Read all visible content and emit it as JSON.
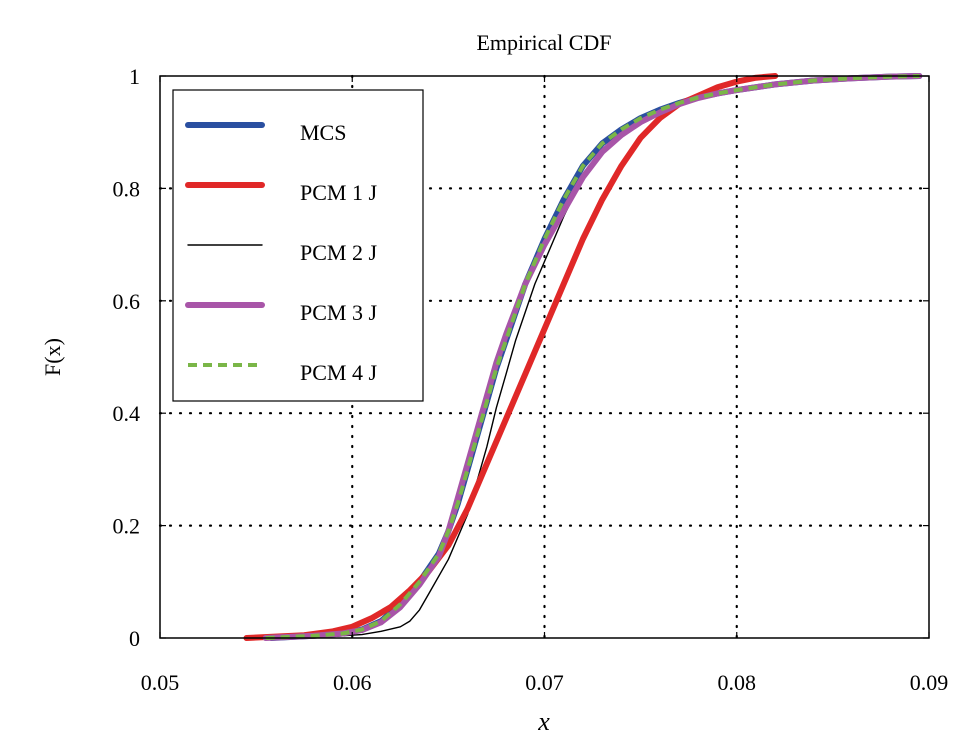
{
  "chart_data": {
    "type": "line",
    "title": "Empirical CDF",
    "xlabel": "x",
    "ylabel": "F(x)",
    "xlim": [
      0.05,
      0.09
    ],
    "ylim": [
      0,
      1
    ],
    "x_ticks": [
      0.05,
      0.06,
      0.07,
      0.08,
      0.09
    ],
    "x_tick_labels": [
      "0.05",
      "0.06",
      "0.07",
      "0.08",
      "0.09"
    ],
    "y_ticks": [
      0,
      0.2,
      0.4,
      0.6,
      0.8,
      1
    ],
    "y_tick_labels": [
      "0",
      "0.2",
      "0.4",
      "0.6",
      "0.8",
      "1"
    ],
    "grid": "dotted",
    "legend_position": "top-left",
    "series": [
      {
        "name": "MCS",
        "color": "#2a4fa0",
        "style": "solid-thick",
        "x": [
          0.0558,
          0.058,
          0.0595,
          0.0605,
          0.0615,
          0.0625,
          0.0635,
          0.0645,
          0.065,
          0.0655,
          0.066,
          0.0665,
          0.067,
          0.0675,
          0.068,
          0.0685,
          0.069,
          0.0695,
          0.07,
          0.0705,
          0.071,
          0.0715,
          0.072,
          0.073,
          0.074,
          0.075,
          0.076,
          0.077,
          0.078,
          0.079,
          0.08,
          0.082,
          0.084,
          0.086,
          0.088,
          0.0895
        ],
        "y": [
          0.0,
          0.004,
          0.008,
          0.015,
          0.03,
          0.06,
          0.1,
          0.15,
          0.19,
          0.24,
          0.3,
          0.36,
          0.42,
          0.48,
          0.53,
          0.58,
          0.63,
          0.67,
          0.71,
          0.745,
          0.78,
          0.81,
          0.84,
          0.88,
          0.905,
          0.925,
          0.94,
          0.952,
          0.962,
          0.969,
          0.975,
          0.985,
          0.992,
          0.996,
          0.999,
          1.0
        ]
      },
      {
        "name": "PCM 1 J",
        "color": "#e02828",
        "style": "solid-thick",
        "x": [
          0.0545,
          0.0575,
          0.059,
          0.06,
          0.061,
          0.062,
          0.063,
          0.064,
          0.065,
          0.066,
          0.067,
          0.068,
          0.069,
          0.07,
          0.071,
          0.072,
          0.073,
          0.074,
          0.075,
          0.076,
          0.077,
          0.078,
          0.079,
          0.08,
          0.081,
          0.082
        ],
        "y": [
          0.0,
          0.005,
          0.012,
          0.02,
          0.035,
          0.055,
          0.085,
          0.12,
          0.165,
          0.23,
          0.31,
          0.39,
          0.47,
          0.55,
          0.63,
          0.71,
          0.78,
          0.84,
          0.89,
          0.925,
          0.95,
          0.965,
          0.98,
          0.99,
          0.997,
          1.0
        ]
      },
      {
        "name": "PCM 2 J",
        "color": "#000000",
        "style": "solid-thin",
        "x": [
          0.0555,
          0.059,
          0.0605,
          0.0615,
          0.0625,
          0.063,
          0.0635,
          0.064,
          0.065,
          0.066,
          0.0665,
          0.067,
          0.0675,
          0.068,
          0.0685,
          0.069,
          0.0695,
          0.07,
          0.0705,
          0.071,
          0.072,
          0.073,
          0.074,
          0.075,
          0.076,
          0.077,
          0.078,
          0.079,
          0.08,
          0.082,
          0.084,
          0.086,
          0.088,
          0.0895
        ],
        "y": [
          0.0,
          0.003,
          0.006,
          0.012,
          0.02,
          0.03,
          0.05,
          0.08,
          0.14,
          0.22,
          0.28,
          0.34,
          0.41,
          0.47,
          0.53,
          0.58,
          0.63,
          0.67,
          0.71,
          0.75,
          0.82,
          0.87,
          0.9,
          0.922,
          0.938,
          0.95,
          0.96,
          0.968,
          0.975,
          0.985,
          0.992,
          0.996,
          0.999,
          1.0
        ]
      },
      {
        "name": "PCM 3 J",
        "color": "#a855a8",
        "style": "solid-thick",
        "x": [
          0.0555,
          0.058,
          0.0595,
          0.0605,
          0.0615,
          0.0625,
          0.0635,
          0.0645,
          0.065,
          0.0655,
          0.066,
          0.0665,
          0.067,
          0.0675,
          0.068,
          0.0685,
          0.069,
          0.0695,
          0.07,
          0.0705,
          0.071,
          0.0715,
          0.072,
          0.073,
          0.074,
          0.075,
          0.076,
          0.077,
          0.078,
          0.079,
          0.08,
          0.082,
          0.084,
          0.086,
          0.088,
          0.0895
        ],
        "y": [
          0.0,
          0.004,
          0.008,
          0.014,
          0.028,
          0.055,
          0.095,
          0.145,
          0.19,
          0.25,
          0.31,
          0.37,
          0.43,
          0.49,
          0.54,
          0.585,
          0.63,
          0.665,
          0.7,
          0.73,
          0.76,
          0.79,
          0.82,
          0.865,
          0.895,
          0.918,
          0.935,
          0.95,
          0.961,
          0.969,
          0.975,
          0.985,
          0.992,
          0.996,
          0.999,
          1.0
        ]
      },
      {
        "name": "PCM 4 J",
        "color": "#7ab648",
        "style": "dashed",
        "x": [
          0.0555,
          0.058,
          0.0595,
          0.0605,
          0.0615,
          0.0625,
          0.0635,
          0.0645,
          0.065,
          0.0655,
          0.066,
          0.0665,
          0.067,
          0.0675,
          0.068,
          0.0685,
          0.069,
          0.0695,
          0.07,
          0.0705,
          0.071,
          0.0715,
          0.072,
          0.073,
          0.074,
          0.075,
          0.076,
          0.077,
          0.078,
          0.079,
          0.08,
          0.082,
          0.084,
          0.086,
          0.088,
          0.0895
        ],
        "y": [
          0.0,
          0.004,
          0.008,
          0.015,
          0.03,
          0.06,
          0.1,
          0.15,
          0.19,
          0.24,
          0.3,
          0.36,
          0.42,
          0.48,
          0.53,
          0.58,
          0.63,
          0.67,
          0.71,
          0.745,
          0.78,
          0.81,
          0.84,
          0.88,
          0.905,
          0.925,
          0.94,
          0.952,
          0.962,
          0.969,
          0.975,
          0.985,
          0.992,
          0.996,
          0.999,
          1.0
        ]
      }
    ]
  }
}
